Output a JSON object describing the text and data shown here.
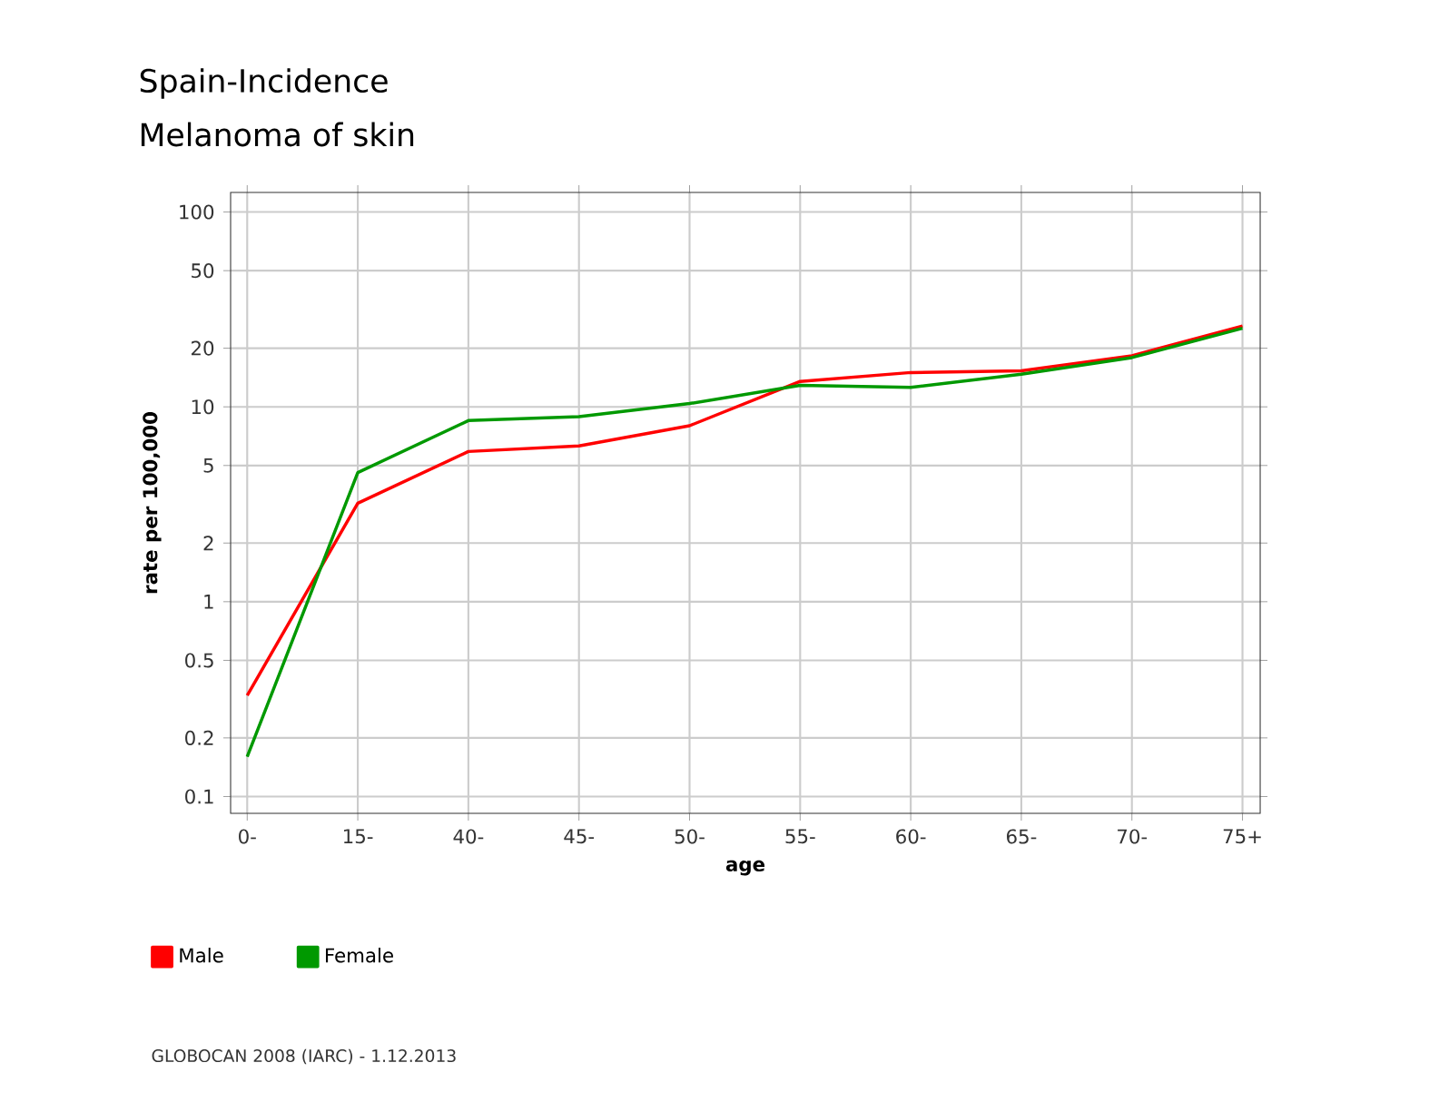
{
  "chart_data": {
    "type": "line",
    "title": "Spain-Incidence",
    "subtitle": "Melanoma of skin",
    "xlabel": "age",
    "ylabel": "rate per 100,000",
    "categories": [
      "0-",
      "15-",
      "40-",
      "45-",
      "50-",
      "55-",
      "60-",
      "65-",
      "70-",
      "75+"
    ],
    "series": [
      {
        "name": "Male",
        "color": "#ff0000",
        "values": [
          0.33,
          3.2,
          5.9,
          6.3,
          8.0,
          13.5,
          15.0,
          15.3,
          18.3,
          26
        ]
      },
      {
        "name": "Female",
        "color": "#009900",
        "values": [
          0.16,
          4.6,
          8.5,
          8.9,
          10.4,
          12.9,
          12.6,
          14.7,
          17.9,
          25.3
        ]
      }
    ],
    "log": "y",
    "ylim": [
      0.082,
      126
    ],
    "yticks": [
      0.1,
      0.2,
      0.5,
      1,
      2,
      5,
      10,
      20,
      50,
      100
    ],
    "grid": true,
    "legend": "bottom left",
    "marker": "none",
    "line_style": "solid",
    "annotations": [
      "GLOBOCAN 2008 (IARC) - 1.12.2013"
    ]
  }
}
